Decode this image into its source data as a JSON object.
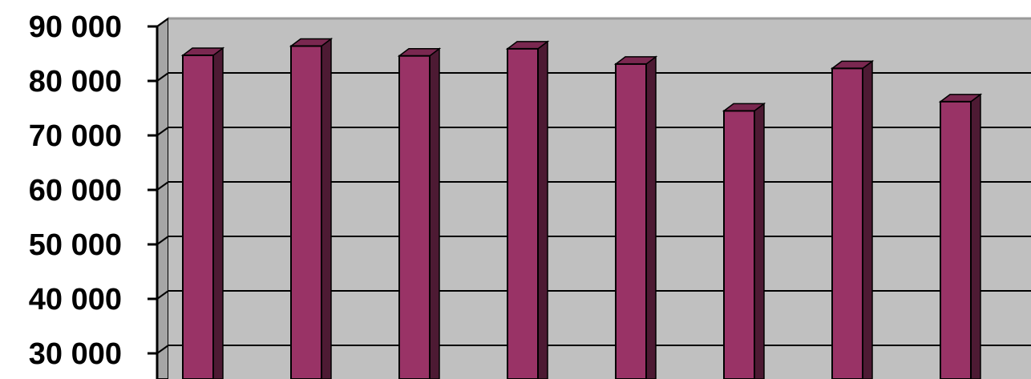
{
  "chart_data": {
    "type": "bar",
    "title": "",
    "xlabel": "",
    "ylabel": "",
    "grid": true,
    "legend": "none",
    "ylim": [
      20000,
      90000
    ],
    "y_ticks": [
      {
        "value": 90000,
        "label": "90 000"
      },
      {
        "value": 80000,
        "label": "80 000"
      },
      {
        "value": 70000,
        "label": "70 000"
      },
      {
        "value": 60000,
        "label": "60 000"
      },
      {
        "value": 50000,
        "label": "50 000"
      },
      {
        "value": 40000,
        "label": "40 000"
      },
      {
        "value": 30000,
        "label": "30 000"
      }
    ],
    "values": [
      84700,
      86400,
      84600,
      85900,
      83100,
      74500,
      82300,
      76200
    ],
    "colors": {
      "bar_front": "#993366",
      "bar_top": "#7a2850",
      "bar_side": "#4d1a33",
      "back_wall": "#c0c0c0",
      "side_wall": "#a6a6a6",
      "gridline": "#000000"
    }
  }
}
